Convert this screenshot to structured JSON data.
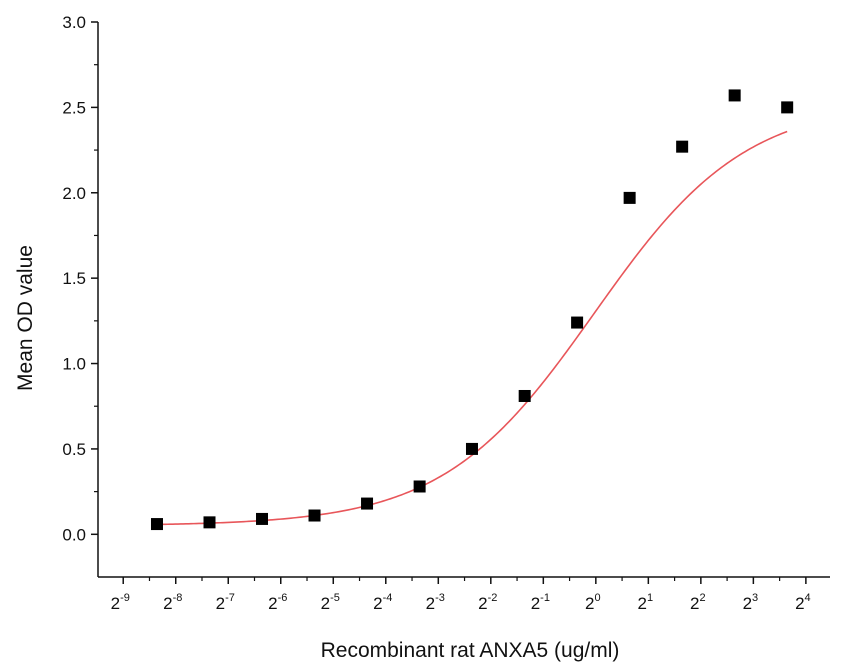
{
  "chart_data": {
    "type": "scatter",
    "xlabel": "Recombinant rat ANXA5 (ug/ml)",
    "ylabel": "Mean OD value",
    "x_scale": "log2",
    "x_tick_base": "2",
    "x_ticks": [
      -9,
      -8,
      -7,
      -6,
      -5,
      -4,
      -3,
      -2,
      -1,
      0,
      1,
      2,
      3,
      4
    ],
    "y_ticks": [
      "0.0",
      "0.5",
      "1.0",
      "1.5",
      "2.0",
      "2.5",
      "3.0"
    ],
    "xlim": [
      0.0014,
      22
    ],
    "ylim": [
      -0.25,
      3.0
    ],
    "grid": false,
    "legend": "none",
    "series": [
      {
        "marker": "square",
        "color": "#000000",
        "x": [
          0.00305,
          0.0061,
          0.0122,
          0.0244,
          0.0488,
          0.0977,
          0.195,
          0.391,
          0.781,
          1.5625,
          3.125,
          6.25,
          12.5
        ],
        "y": [
          0.06,
          0.07,
          0.09,
          0.11,
          0.18,
          0.28,
          0.5,
          0.81,
          1.24,
          1.97,
          2.27,
          2.57,
          2.5
        ]
      }
    ],
    "fit_curve": {
      "color": "#e8565a",
      "model": "4PL",
      "bottom": 0.05,
      "top": 2.54,
      "ec50": 0.98,
      "hill": 1.0,
      "x_range": [
        0.00305,
        12.5
      ]
    }
  }
}
